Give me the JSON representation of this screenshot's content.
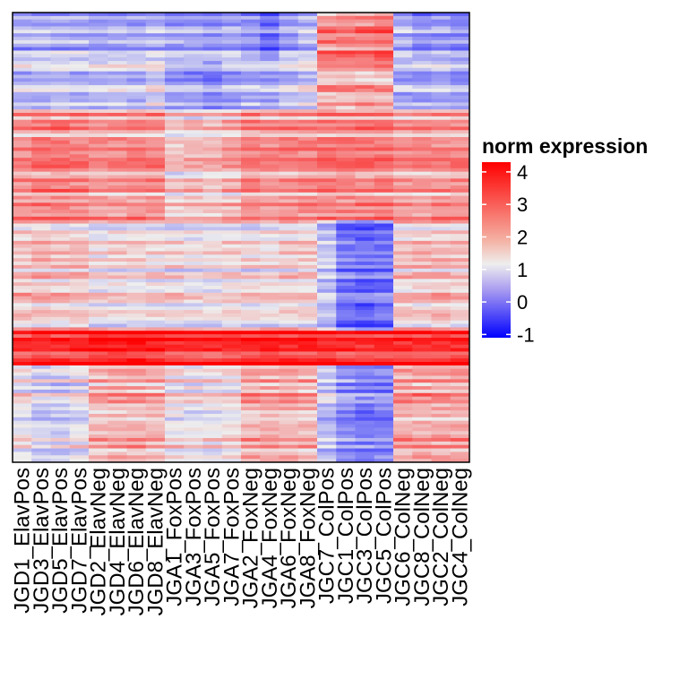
{
  "chart_data": {
    "type": "heatmap",
    "title": "",
    "xlabel": "",
    "ylabel": "",
    "columns": [
      "JGD1_ElavPos",
      "JGD3_ElavPos",
      "JGD5_ElavPos",
      "JGD7_ElavPos",
      "JGD2_ElavNeg",
      "JGD4_ElavNeg",
      "JGD6_ElavNeg",
      "JGD8_ElavNeg",
      "JGA1_FoxPos",
      "JGA3_FoxPos",
      "JGA5_FoxPos",
      "JGA7_FoxPos",
      "JGA2_FoxNeg",
      "JGA4_FoxNeg",
      "JGA6_FoxNeg",
      "JGA8_FoxNeg",
      "JGC7_ColPos",
      "JGC1_ColPos",
      "JGC3_ColPos",
      "JGC5_ColPos",
      "JGC6_ColNeg",
      "JGC8_ColNeg",
      "JGC2_ColNeg",
      "JGC4_ColNeg"
    ],
    "column_groups": [
      {
        "name": "ElavPos",
        "columns": [
          0,
          1,
          2,
          3
        ]
      },
      {
        "name": "ElavNeg",
        "columns": [
          4,
          5,
          6,
          7
        ]
      },
      {
        "name": "FoxPos",
        "columns": [
          8,
          9,
          10,
          11
        ]
      },
      {
        "name": "FoxNeg",
        "columns": [
          12,
          13,
          14,
          15
        ]
      },
      {
        "name": "ColPos",
        "columns": [
          16,
          17,
          18,
          19
        ]
      },
      {
        "name": "ColNeg",
        "columns": [
          20,
          21,
          22,
          23
        ]
      }
    ],
    "n_rows": 130,
    "value_range": [
      -1.2,
      4.3
    ],
    "row_blocks": [
      {
        "rows": 14,
        "values": [
          1.0,
          1.0,
          1.0,
          1.0,
          0.9,
          0.9,
          0.9,
          1.0,
          0.8,
          0.8,
          0.7,
          0.9,
          0.7,
          0.2,
          0.8,
          1.1,
          2.8,
          2.9,
          2.9,
          3.0,
          0.9,
          0.6,
          0.7,
          0.5
        ]
      },
      {
        "rows": 14,
        "values": [
          1.3,
          1.3,
          1.4,
          1.3,
          1.3,
          1.4,
          1.3,
          1.6,
          0.9,
          0.9,
          0.6,
          1.0,
          1.2,
          1.1,
          1.4,
          1.6,
          2.6,
          2.6,
          2.6,
          2.6,
          1.0,
          1.1,
          1.2,
          1.0
        ]
      },
      {
        "rows": 32,
        "values": [
          2.6,
          2.8,
          2.8,
          2.7,
          2.6,
          2.6,
          2.7,
          2.7,
          2.0,
          2.1,
          2.1,
          2.3,
          2.7,
          2.6,
          2.7,
          2.7,
          2.8,
          2.8,
          2.8,
          2.8,
          2.6,
          2.6,
          2.6,
          2.6
        ]
      },
      {
        "rows": 32,
        "values": [
          2.2,
          2.2,
          2.1,
          2.2,
          1.8,
          1.9,
          1.9,
          1.9,
          1.9,
          1.8,
          1.8,
          1.9,
          1.9,
          1.9,
          2.0,
          2.0,
          1.2,
          0.3,
          0.1,
          0.2,
          2.1,
          2.2,
          2.2,
          2.1
        ]
      },
      {
        "rows": 10,
        "values": [
          3.8,
          3.9,
          3.9,
          3.9,
          4.1,
          4.1,
          4.1,
          4.1,
          3.9,
          3.8,
          3.8,
          3.9,
          4.0,
          4.0,
          4.0,
          4.0,
          3.9,
          3.9,
          3.9,
          3.9,
          3.9,
          3.9,
          3.9,
          3.9
        ]
      },
      {
        "rows": 28,
        "values": [
          1.9,
          1.6,
          1.6,
          1.8,
          2.5,
          2.6,
          2.6,
          2.6,
          2.0,
          1.9,
          1.9,
          2.0,
          2.6,
          2.6,
          2.6,
          2.6,
          1.4,
          0.8,
          0.5,
          0.6,
          2.7,
          2.7,
          2.7,
          2.7
        ]
      }
    ],
    "legend": {
      "title": "norm expression",
      "ticks": [
        4,
        3,
        2,
        1,
        0,
        -1
      ],
      "colors": {
        "low": "#0000ff",
        "mid": "#eeeeee",
        "high": "#ff0000"
      },
      "mid_value": 1.8,
      "placement": "right"
    }
  }
}
